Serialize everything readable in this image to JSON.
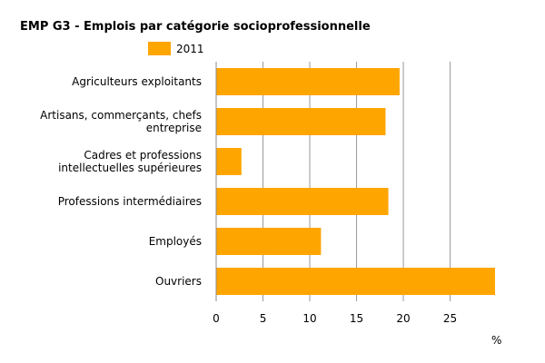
{
  "chart_data": {
    "type": "bar",
    "orientation": "horizontal",
    "title": "EMP G3 - Emplois par catégorie socioprofessionnelle",
    "categories": [
      "Agriculteurs exploitants",
      "Artisans, commerçants, chefs entreprise",
      "Cadres et professions intellectuelles supérieures",
      "Professions intermédiaires",
      "Employés",
      "Ouvriers"
    ],
    "category_lines": [
      [
        "Agriculteurs exploitants"
      ],
      [
        "Artisans, commerçants, chefs",
        "entreprise"
      ],
      [
        "Cadres et professions",
        "intellectuelles supérieures"
      ],
      [
        "Professions intermédiaires"
      ],
      [
        "Employés"
      ],
      [
        "Ouvriers"
      ]
    ],
    "series": [
      {
        "name": "2011",
        "values": [
          19.6,
          18.1,
          2.7,
          18.4,
          11.2,
          29.8
        ],
        "color": "#FFA500"
      }
    ],
    "xlabel": "%",
    "xlim": [
      0,
      29.8
    ],
    "xticks": [
      0,
      5,
      10,
      15,
      20,
      25
    ],
    "grid": true,
    "legend": "top"
  }
}
